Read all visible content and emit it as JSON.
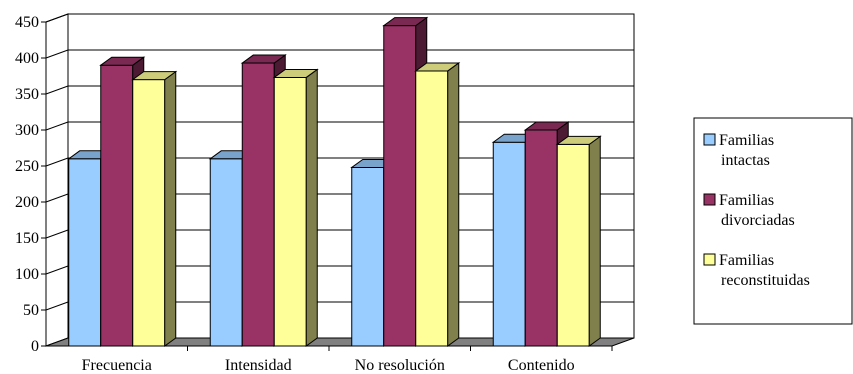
{
  "chart_data": {
    "type": "bar",
    "three_d": true,
    "categories": [
      "Frecuencia",
      "Intensidad",
      "No resolución",
      "Contenido"
    ],
    "series": [
      {
        "name": "Familias intactas",
        "values": [
          260,
          260,
          248,
          283
        ],
        "color": "#99CCFF"
      },
      {
        "name": "Familias divorciadas",
        "values": [
          390,
          393,
          445,
          300
        ],
        "color": "#993366"
      },
      {
        "name": "Familias reconstituidas",
        "values": [
          370,
          373,
          382,
          280
        ],
        "color": "#FFFF99"
      }
    ],
    "yticks": [
      0,
      50,
      100,
      150,
      200,
      250,
      300,
      350,
      400,
      450
    ],
    "ylim": [
      0,
      450
    ],
    "grid": true,
    "legend_position": "right",
    "legend_lines": [
      [
        "Familias",
        "intactas"
      ],
      [
        "Familias",
        "divorciadas"
      ],
      [
        "Familias",
        "reconstituidas"
      ]
    ]
  }
}
